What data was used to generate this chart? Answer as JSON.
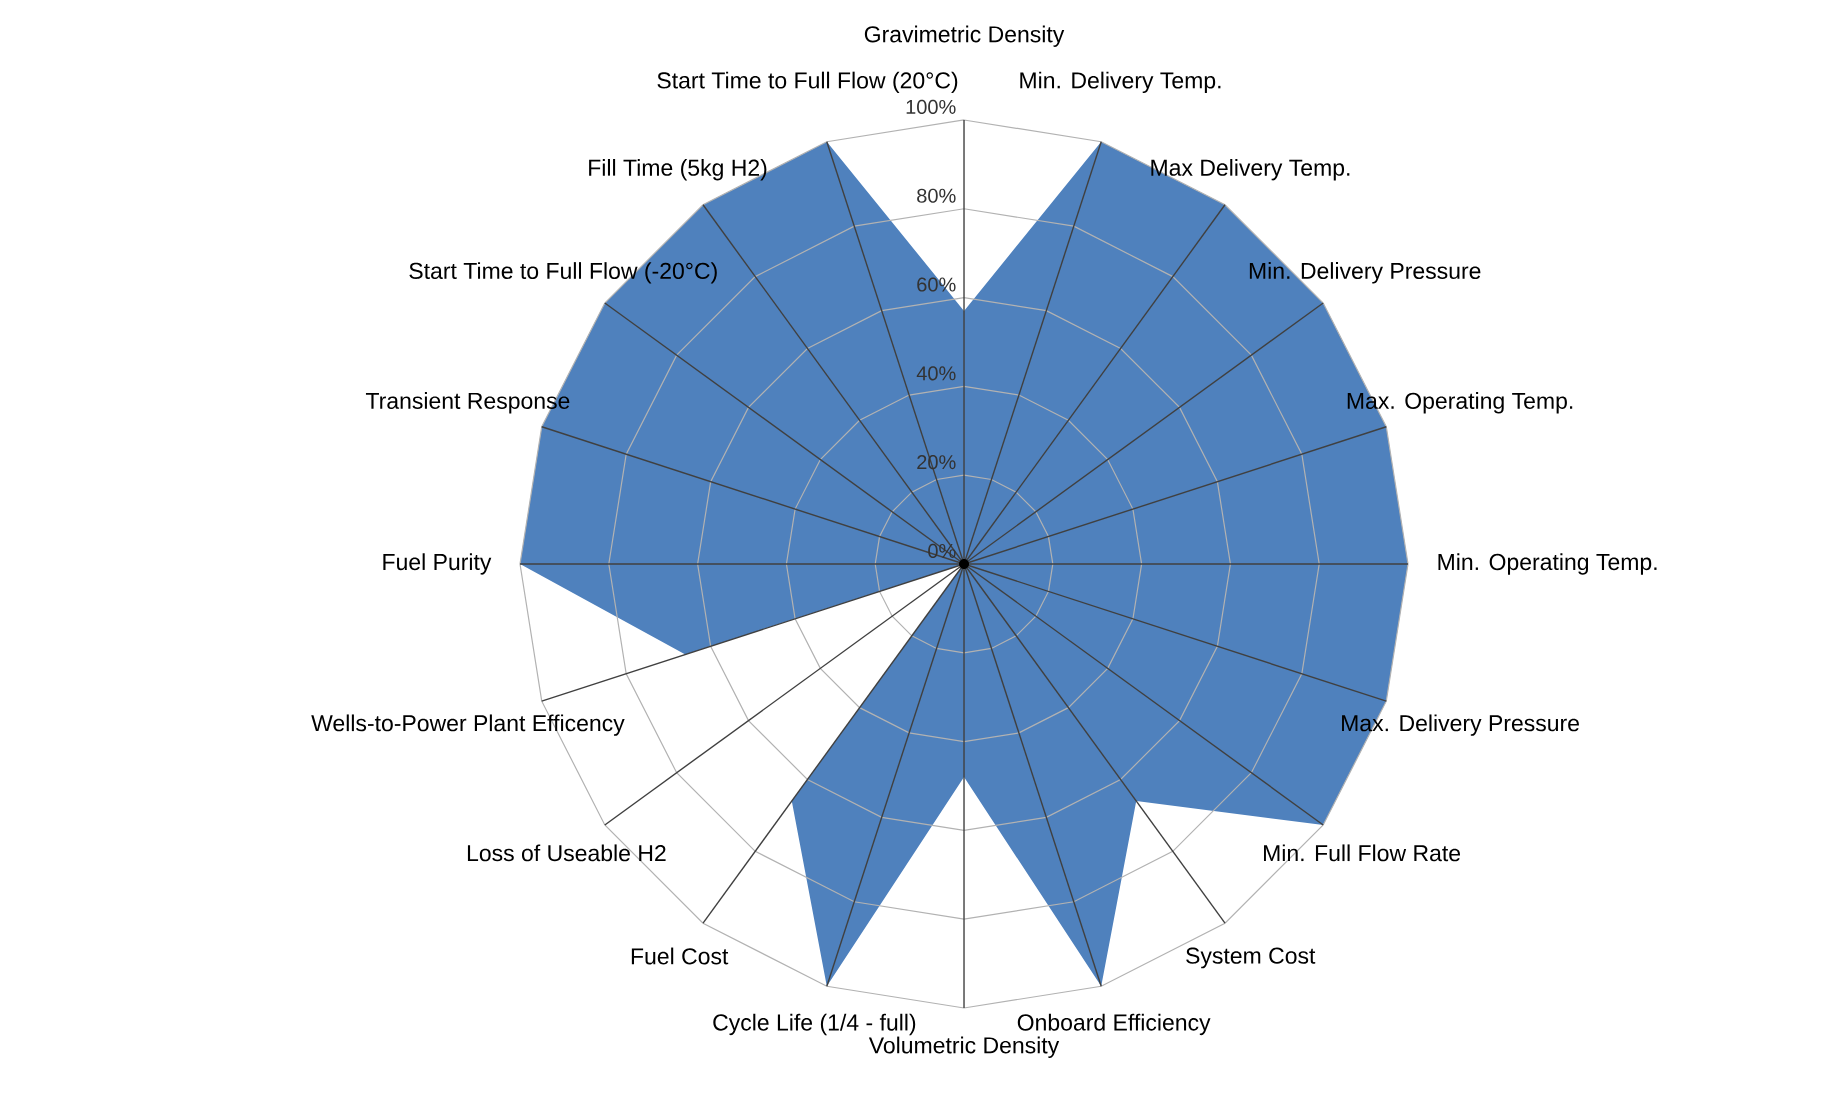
{
  "chart_data": {
    "type": "radar",
    "categories": [
      "Gravimetric Density",
      "Min. Delivery Temp.",
      "Max Delivery Temp.",
      "Min. Delivery Pressure",
      "Max. Operating Temp.",
      "Min. Operating Temp.",
      "Max. Delivery Pressure",
      "Min. Full Flow Rate",
      "System Cost",
      "Onboard Efficiency",
      "Volumetric Density",
      "Cycle Life (1/4 - full)",
      "Fuel Cost",
      "Loss of Useable H2",
      "Wells-to-Power Plant Efficency",
      "Fuel Purity",
      "Transient Response",
      "Start Time to Full Flow (-20°C)",
      "Fill Time (5kg H2)",
      "Start Time to Full Flow (20°C)"
    ],
    "series": [
      {
        "color": "#4f81bd",
        "values": [
          57,
          100,
          100,
          100,
          100,
          100,
          100,
          100,
          66,
          100,
          48,
          100,
          66,
          0,
          66,
          100,
          100,
          100,
          100,
          100
        ]
      }
    ],
    "ylim": [
      0,
      100
    ],
    "yticks": [
      {
        "value": 0,
        "label": "0%"
      },
      {
        "value": 20,
        "label": "20%"
      },
      {
        "value": 40,
        "label": "40%"
      },
      {
        "value": 60,
        "label": "60%"
      },
      {
        "value": 80,
        "label": "80%"
      },
      {
        "value": 100,
        "label": "100%"
      }
    ],
    "grid": true
  }
}
